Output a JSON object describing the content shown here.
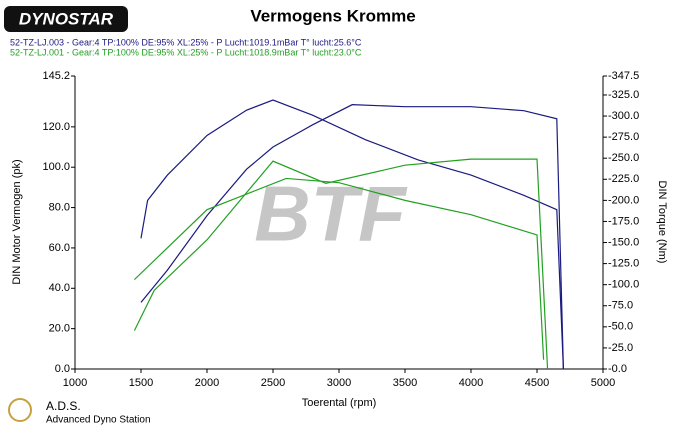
{
  "chart_data": {
    "type": "line",
    "title": "Vermogens Kromme",
    "logo": "DYNOSTAR",
    "footer_title": "A.D.S.",
    "footer_subtitle": "Advanced Dyno Station",
    "watermark": "BTF",
    "xlabel": "Toerental (rpm)",
    "ylabel": "DIN Motor Vermogen (pk)",
    "y2label": "DIN Torque (Nm)",
    "xlim": [
      1000,
      5000
    ],
    "xticks": [
      1000,
      1500,
      2000,
      2500,
      3000,
      3500,
      4000,
      4500,
      5000
    ],
    "ylim": [
      0,
      145.2
    ],
    "yticks": [
      {
        "value": 0,
        "label": "0.0"
      },
      {
        "value": 20,
        "label": "20.0"
      },
      {
        "value": 40,
        "label": "40.0"
      },
      {
        "value": 60,
        "label": "60.0"
      },
      {
        "value": 80,
        "label": "80.0"
      },
      {
        "value": 100,
        "label": "100.0"
      },
      {
        "value": 120,
        "label": "120.0"
      },
      145.2
    ],
    "y2lim": [
      0,
      347.5
    ],
    "y2ticks": [
      {
        "value": 0,
        "label": "-0.0"
      },
      {
        "value": 25,
        "label": "-25.0"
      },
      {
        "value": 50,
        "label": "-50.0"
      },
      {
        "value": 75,
        "label": "-75.0"
      },
      {
        "value": 100,
        "label": "-100.0"
      },
      {
        "value": 125,
        "label": "-125.0"
      },
      {
        "value": 150,
        "label": "-150.0"
      },
      {
        "value": 175,
        "label": "-175.0"
      },
      {
        "value": 200,
        "label": "-200.0"
      },
      {
        "value": 225,
        "label": "-225.0"
      },
      {
        "value": 250,
        "label": "-250.0"
      },
      {
        "value": 275,
        "label": "-275.0"
      },
      {
        "value": 300,
        "label": "-300.0"
      },
      {
        "value": 325,
        "label": "-325.0"
      },
      {
        "value": 347.5,
        "label": "-347.5"
      }
    ],
    "runs": [
      {
        "label": "52-TZ-LJ.003 - Gear:4 TP:100% DE:95% XL:25%   - P Lucht:1019.1mBar T° lucht:25.6°C",
        "color": "#1a1a80",
        "power": {
          "x": [
            1500,
            1700,
            2000,
            2300,
            2500,
            2800,
            3100,
            3500,
            4000,
            4400,
            4650,
            4700
          ],
          "values": [
            33,
            49,
            76,
            99,
            110,
            121,
            131,
            130,
            130,
            128,
            124,
            0
          ]
        },
        "torque": {
          "x": [
            1500,
            1550,
            1700,
            2000,
            2300,
            2500,
            2800,
            3200,
            3600,
            4000,
            4400,
            4650,
            4700
          ],
          "values": [
            155,
            200,
            230,
            277,
            307,
            319,
            301,
            272,
            248,
            230,
            206,
            189,
            0
          ]
        }
      },
      {
        "label": "52-TZ-LJ.001 - Gear:4 TP:100% DE:95% XL:25%   - P Lucht:1018.9mBar T° lucht:23.0°C",
        "color": "#22a022",
        "power": {
          "x": [
            1450,
            1600,
            2000,
            2500,
            2900,
            3500,
            4000,
            4500,
            4580
          ],
          "values": [
            19,
            39,
            64,
            103,
            92,
            101,
            104,
            104,
            0
          ]
        },
        "torque": {
          "x": [
            1450,
            2000,
            2600,
            3000,
            3500,
            4000,
            4500,
            4550
          ],
          "values": [
            106,
            189,
            226,
            221,
            200,
            183,
            159,
            11
          ]
        }
      }
    ]
  }
}
